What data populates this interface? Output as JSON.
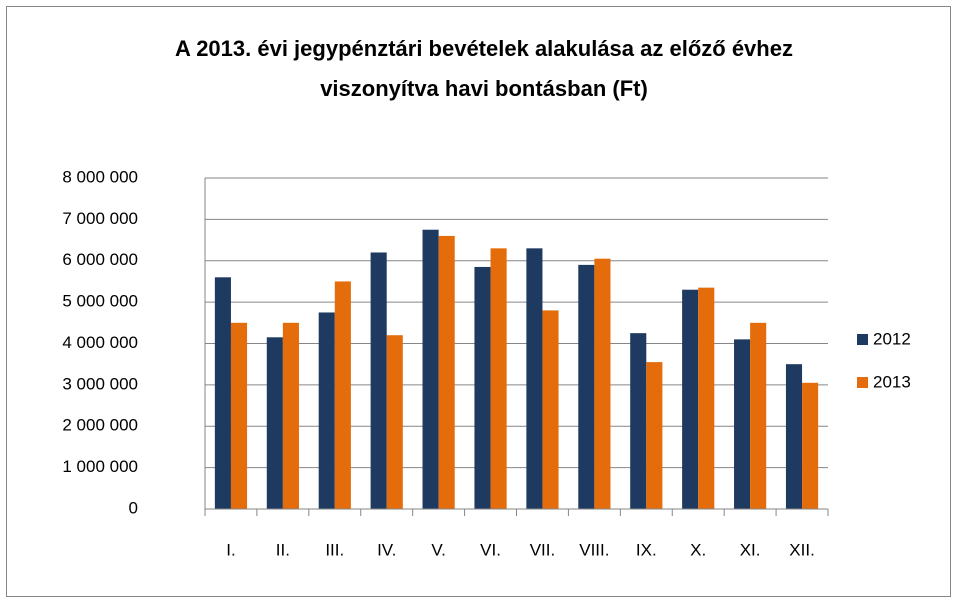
{
  "chart_data": {
    "type": "bar",
    "title": [
      "A 2013. évi jegypénztári bevételek alakulása az előző évhez",
      "viszonyítva havi bontásban  (Ft)"
    ],
    "categories": [
      "I.",
      "II.",
      "III.",
      "IV.",
      "V.",
      "VI.",
      "VII.",
      "VIII.",
      "IX.",
      "X.",
      "XI.",
      "XII."
    ],
    "series": [
      {
        "name": "2012",
        "color": "#1f3a60",
        "values": [
          5600000,
          4150000,
          4750000,
          6200000,
          6750000,
          5850000,
          6300000,
          5900000,
          4250000,
          5300000,
          4100000,
          3500000
        ]
      },
      {
        "name": "2013",
        "color": "#e46c0a",
        "values": [
          4500000,
          4500000,
          5500000,
          4200000,
          6600000,
          6300000,
          4800000,
          6050000,
          3550000,
          5350000,
          4500000,
          3050000
        ]
      }
    ],
    "ylim": [
      0,
      8000000
    ],
    "yticks": [
      0,
      {
        "value": 1000000,
        "label": "1 000 000"
      },
      {
        "value": 2000000,
        "label": "2 000 000"
      },
      {
        "value": 3000000,
        "label": "3 000 000"
      },
      {
        "value": 4000000,
        "label": "4 000 000"
      },
      {
        "value": 5000000,
        "label": "5 000 000"
      },
      {
        "value": 6000000,
        "label": "6 000 000"
      },
      {
        "value": 7000000,
        "label": "7 000 000"
      },
      {
        "value": 8000000,
        "label": "8 000 000"
      }
    ],
    "grid": true,
    "legend": "right"
  }
}
